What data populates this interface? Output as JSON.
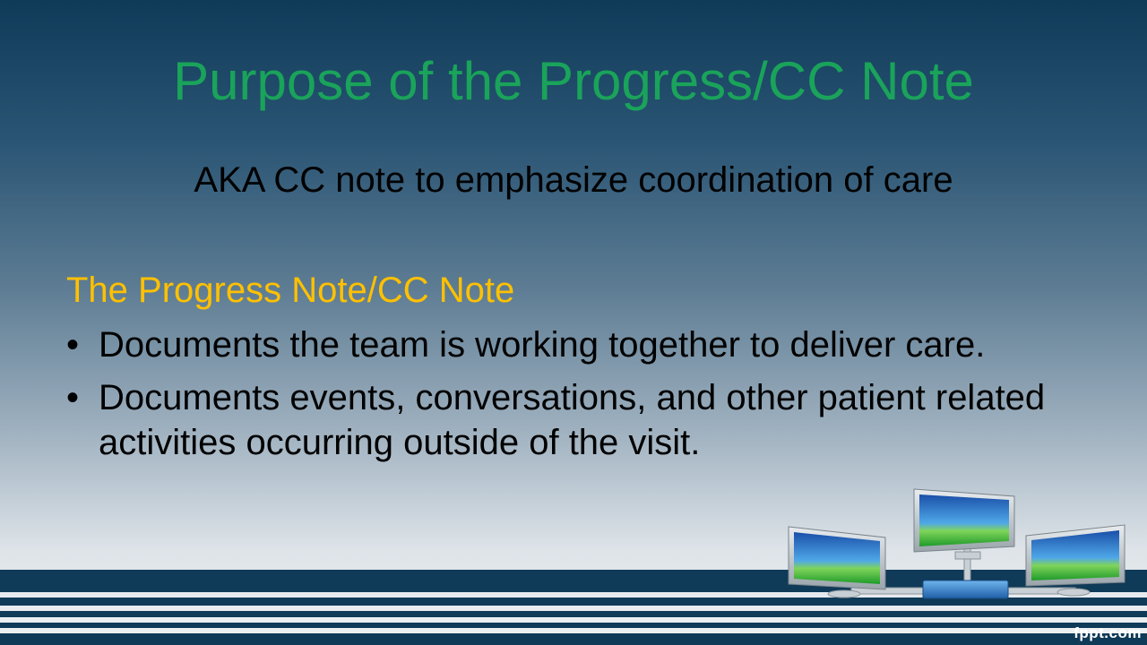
{
  "slide": {
    "title": "Purpose of the Progress/CC Note",
    "subtitle": "AKA CC note to emphasize coordination of care",
    "heading": "The Progress Note/CC Note",
    "bullets": [
      "Documents the team is working together to deliver care.",
      "Documents events, conversations, and other patient related activities occurring outside of the visit."
    ],
    "bullet_symbol": "•",
    "brand": "fppt.com"
  },
  "colors": {
    "title": "#1aa35a",
    "heading": "#ffc000",
    "band": "#0f3a58"
  },
  "icons": [
    "networked-computers-illustration"
  ]
}
